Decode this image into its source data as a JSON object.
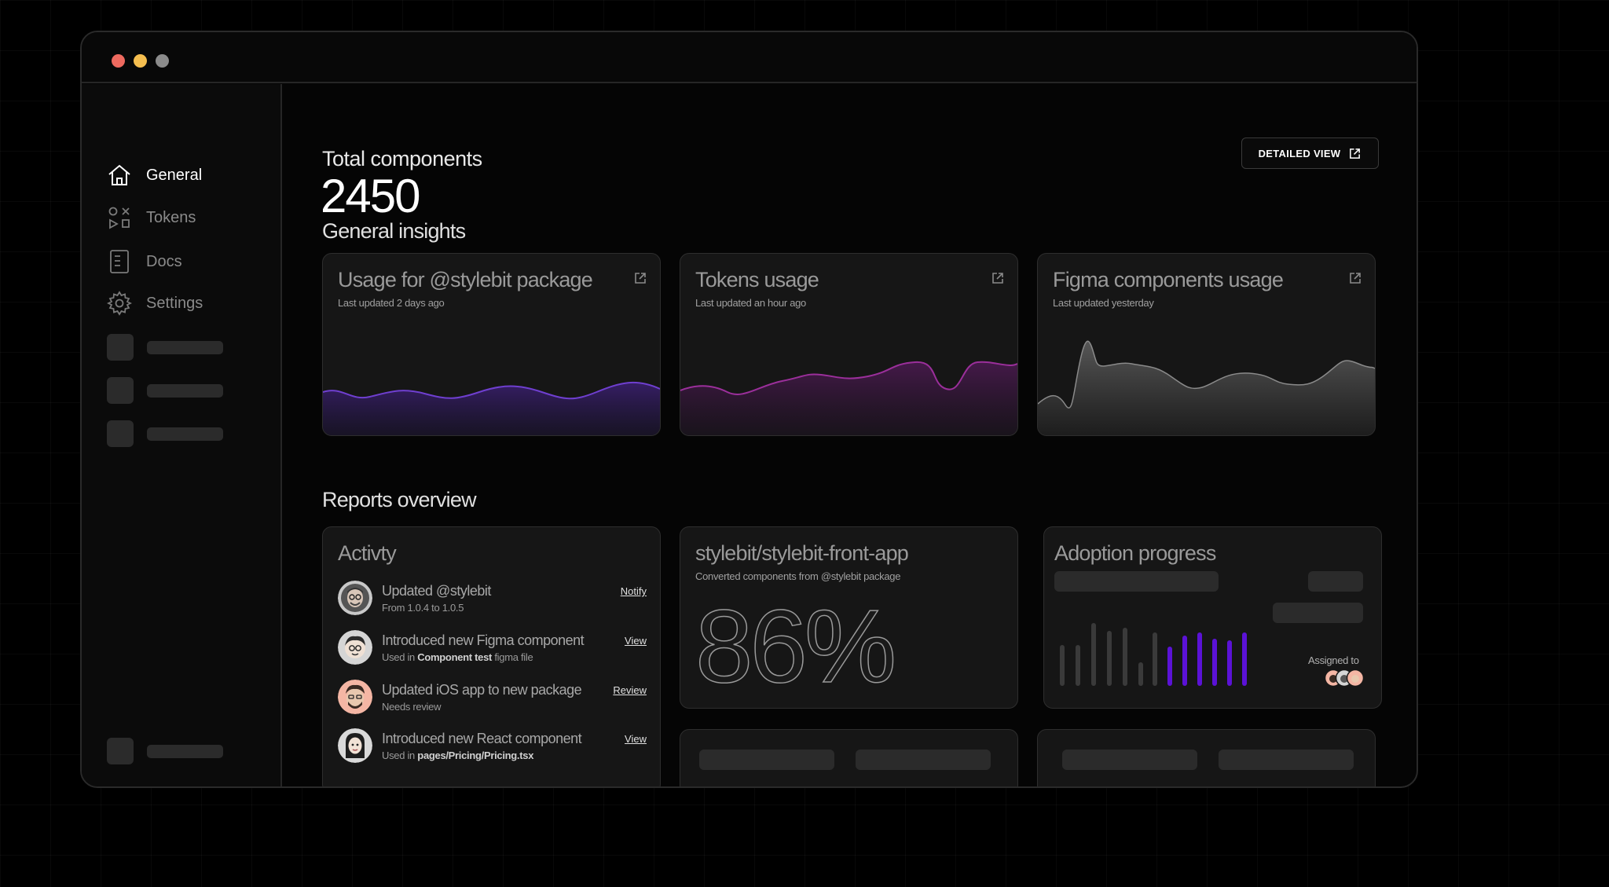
{
  "sidebar": {
    "items": [
      {
        "label": "General",
        "icon": "home-icon",
        "active": true
      },
      {
        "label": "Tokens",
        "icon": "shapes-icon",
        "active": false
      },
      {
        "label": "Docs",
        "icon": "document-icon",
        "active": false
      },
      {
        "label": "Settings",
        "icon": "gear-icon",
        "active": false
      }
    ]
  },
  "header": {
    "total_label": "Total components",
    "total_value": "2450",
    "detailed_view_label": "DETAILED VIEW"
  },
  "insights": {
    "title": "General insights",
    "cards": [
      {
        "title": "Usage for @stylebit package",
        "subtitle": "Last updated 2 days ago",
        "color": "#6f3fd0"
      },
      {
        "title": "Tokens usage",
        "subtitle": "Last updated an hour ago",
        "color": "#9b2f9b"
      },
      {
        "title": "Figma components usage",
        "subtitle": "Last updated yesterday",
        "color": "#8a8a8a"
      }
    ]
  },
  "reports": {
    "title": "Reports overview",
    "activity": {
      "title": "Activty",
      "items": [
        {
          "title": "Updated @stylebit",
          "sub_pre": "From 1.0.4 to 1.0.5",
          "sub_bold": "",
          "sub_post": "",
          "action": "Notify"
        },
        {
          "title": "Introduced new Figma component",
          "sub_pre": "Used in ",
          "sub_bold": "Component test",
          "sub_post": " figma file",
          "action": "View"
        },
        {
          "title": "Updated iOS app to new package",
          "sub_pre": "Needs review",
          "sub_bold": "",
          "sub_post": "",
          "action": "Review"
        },
        {
          "title": "Introduced new React component",
          "sub_pre": "Used in ",
          "sub_bold": "pages/Pricing/Pricing.tsx",
          "sub_post": "",
          "action": "View"
        }
      ]
    },
    "repo": {
      "title": "stylebit/stylebit-front-app",
      "subtitle": "Converted components from @stylebit package",
      "percent": "86%"
    },
    "adoption": {
      "title": "Adoption progress",
      "assigned_label": "Assigned to",
      "accent": "#5b12d6"
    }
  }
}
